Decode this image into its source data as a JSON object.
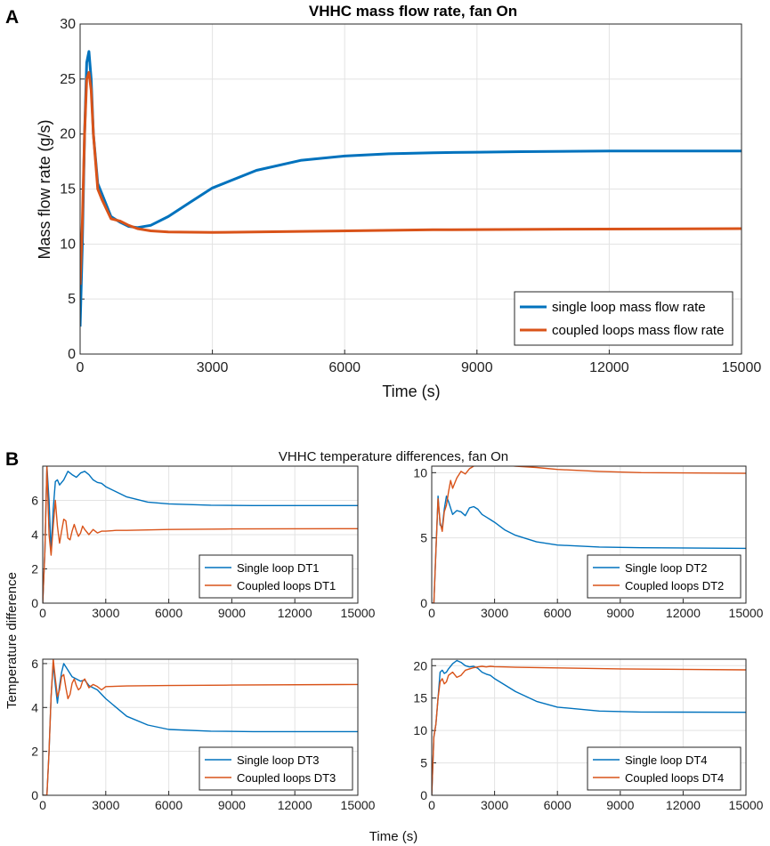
{
  "panels": {
    "a": "A",
    "b": "B"
  },
  "colors": {
    "blue": "#0072BD",
    "orange": "#D95319"
  },
  "chart_data": [
    {
      "id": "A",
      "type": "line",
      "title": "VHHC mass flow rate, fan On",
      "xlabel": "Time (s)",
      "ylabel": "Mass flow rate (g/s)",
      "xlim": [
        0,
        15000
      ],
      "ylim": [
        0,
        30
      ],
      "xticks": [
        0,
        3000,
        6000,
        9000,
        12000,
        15000
      ],
      "yticks": [
        0,
        5,
        10,
        15,
        20,
        25,
        30
      ],
      "grid": true,
      "legend": "bottom-right",
      "series": [
        {
          "name": "single loop mass flow rate",
          "color": "#0072BD",
          "x": [
            0,
            50,
            100,
            150,
            200,
            250,
            300,
            400,
            500,
            700,
            900,
            1100,
            1300,
            1600,
            2000,
            2500,
            3000,
            4000,
            5000,
            6000,
            7000,
            8000,
            9000,
            10000,
            12000,
            15000
          ],
          "y": [
            2.5,
            10,
            20,
            26.5,
            27.5,
            25,
            20,
            15.5,
            14.5,
            12.5,
            12,
            11.6,
            11.5,
            11.7,
            12.5,
            13.8,
            15.1,
            16.7,
            17.6,
            18.0,
            18.2,
            18.3,
            18.35,
            18.4,
            18.45,
            18.45
          ]
        },
        {
          "name": "coupled loops mass flow rate",
          "color": "#D95319",
          "x": [
            0,
            50,
            100,
            150,
            200,
            250,
            300,
            400,
            500,
            700,
            900,
            1100,
            1300,
            1600,
            2000,
            3000,
            5000,
            8000,
            11000,
            15000
          ],
          "y": [
            6.3,
            12,
            20,
            25,
            25.6,
            24,
            20,
            15,
            14,
            12.3,
            12.1,
            11.7,
            11.4,
            11.2,
            11.1,
            11.05,
            11.15,
            11.3,
            11.35,
            11.4
          ]
        }
      ]
    },
    {
      "id": "B",
      "type": "line",
      "title": "VHHC temperature differences, fan On",
      "xlabel": "Time (s)",
      "ylabel": "Temperature difference",
      "subplots": [
        {
          "xlim": [
            0,
            15000
          ],
          "ylim": [
            0,
            8
          ],
          "xticks": [
            0,
            3000,
            6000,
            9000,
            12000,
            15000
          ],
          "yticks": [
            0,
            2,
            4,
            6
          ],
          "legend": "bottom-right",
          "series": [
            {
              "name": "Single loop DT1",
              "color": "#0072BD",
              "x": [
                0,
                100,
                200,
                300,
                400,
                500,
                600,
                700,
                800,
                1000,
                1200,
                1400,
                1600,
                1800,
                2000,
                2200,
                2400,
                2600,
                2800,
                3000,
                3500,
                4000,
                5000,
                6000,
                8000,
                10000,
                15000
              ],
              "y": [
                0,
                3,
                8,
                6,
                3,
                5.5,
                7.1,
                7.2,
                6.9,
                7.2,
                7.7,
                7.5,
                7.35,
                7.6,
                7.7,
                7.5,
                7.2,
                7.05,
                7.0,
                6.8,
                6.5,
                6.2,
                5.9,
                5.8,
                5.72,
                5.7,
                5.7
              ]
            },
            {
              "name": "Coupled loops DT1",
              "color": "#D95319",
              "x": [
                0,
                100,
                200,
                300,
                400,
                500,
                600,
                700,
                800,
                900,
                1000,
                1100,
                1200,
                1300,
                1400,
                1500,
                1600,
                1700,
                1800,
                1900,
                2000,
                2200,
                2400,
                2600,
                2800,
                3000,
                3500,
                4000,
                6000,
                9000,
                15000
              ],
              "y": [
                0,
                3,
                8,
                4,
                2.8,
                4.5,
                6.0,
                4.5,
                3.5,
                4.2,
                4.9,
                4.8,
                3.8,
                3.7,
                4.2,
                4.6,
                4.2,
                3.9,
                4.1,
                4.5,
                4.3,
                4.0,
                4.3,
                4.1,
                4.2,
                4.2,
                4.25,
                4.25,
                4.3,
                4.33,
                4.35
              ]
            }
          ]
        },
        {
          "xlim": [
            0,
            15000
          ],
          "ylim": [
            0,
            10.5
          ],
          "xticks": [
            0,
            3000,
            6000,
            9000,
            12000,
            15000
          ],
          "yticks": [
            0,
            5,
            10
          ],
          "legend": "bottom-right",
          "series": [
            {
              "name": "Single loop DT2",
              "color": "#0072BD",
              "x": [
                0,
                100,
                200,
                300,
                400,
                500,
                600,
                700,
                800,
                1000,
                1200,
                1400,
                1600,
                1800,
                2000,
                2200,
                2400,
                2600,
                2800,
                3000,
                3500,
                4000,
                5000,
                6000,
                8000,
                10000,
                15000
              ],
              "y": [
                0,
                0,
                4,
                8.2,
                6,
                5.8,
                7.2,
                8.2,
                7.8,
                6.8,
                7.1,
                7.0,
                6.7,
                7.3,
                7.4,
                7.2,
                6.8,
                6.6,
                6.4,
                6.2,
                5.6,
                5.2,
                4.7,
                4.45,
                4.3,
                4.25,
                4.2
              ]
            },
            {
              "name": "Coupled loops DT2",
              "color": "#D95319",
              "x": [
                0,
                100,
                200,
                300,
                400,
                500,
                600,
                700,
                800,
                900,
                1000,
                1200,
                1400,
                1600,
                1800,
                2000,
                2200,
                2500,
                3000,
                4000,
                5000,
                6000,
                8000,
                10000,
                15000
              ],
              "y": [
                0,
                0,
                4,
                8.0,
                6.2,
                5.5,
                7.0,
                7.5,
                8.5,
                9.4,
                8.8,
                9.6,
                10.1,
                9.9,
                10.3,
                10.5,
                10.7,
                10.6,
                10.65,
                10.5,
                10.4,
                10.25,
                10.1,
                10.0,
                9.95
              ]
            }
          ]
        },
        {
          "xlim": [
            0,
            15000
          ],
          "ylim": [
            0,
            6.2
          ],
          "xticks": [
            0,
            3000,
            6000,
            9000,
            12000,
            15000
          ],
          "yticks": [
            0,
            2,
            4,
            6
          ],
          "legend": "bottom-right",
          "series": [
            {
              "name": "Single loop DT3",
              "color": "#0072BD",
              "x": [
                0,
                200,
                300,
                400,
                500,
                600,
                700,
                800,
                900,
                1000,
                1200,
                1400,
                1600,
                1800,
                2000,
                2200,
                2400,
                2600,
                2800,
                3000,
                3500,
                4000,
                5000,
                6000,
                8000,
                10000,
                15000
              ],
              "y": [
                0,
                0,
                2,
                4.5,
                6.0,
                5.0,
                4.2,
                5.0,
                5.6,
                6.0,
                5.7,
                5.4,
                5.3,
                5.2,
                5.25,
                5.0,
                4.9,
                4.8,
                4.6,
                4.4,
                4.0,
                3.6,
                3.2,
                3.0,
                2.92,
                2.9,
                2.9
              ]
            },
            {
              "name": "Coupled loops DT3",
              "color": "#D95319",
              "x": [
                0,
                200,
                300,
                400,
                500,
                600,
                700,
                800,
                900,
                1000,
                1100,
                1200,
                1300,
                1400,
                1500,
                1600,
                1700,
                1800,
                1900,
                2000,
                2200,
                2400,
                2600,
                2800,
                3000,
                4000,
                6000,
                9000,
                15000
              ],
              "y": [
                0,
                0,
                2,
                4.5,
                6.2,
                5.3,
                4.5,
                4.8,
                5.4,
                5.5,
                4.9,
                4.4,
                4.6,
                5.1,
                5.3,
                5.0,
                4.8,
                4.9,
                5.2,
                5.3,
                4.9,
                5.05,
                4.95,
                4.8,
                4.95,
                4.98,
                5.0,
                5.02,
                5.05
              ]
            }
          ]
        },
        {
          "xlim": [
            0,
            15000
          ],
          "ylim": [
            0,
            21
          ],
          "xticks": [
            0,
            3000,
            6000,
            9000,
            12000,
            15000
          ],
          "yticks": [
            0,
            5,
            10,
            15,
            20
          ],
          "legend": "bottom-right",
          "series": [
            {
              "name": "Single loop DT4",
              "color": "#0072BD",
              "x": [
                0,
                100,
                200,
                300,
                400,
                500,
                600,
                700,
                800,
                1000,
                1200,
                1400,
                1600,
                1800,
                2000,
                2200,
                2400,
                2600,
                2800,
                3000,
                3500,
                4000,
                5000,
                6000,
                8000,
                10000,
                15000
              ],
              "y": [
                0,
                9,
                11,
                15,
                19,
                19.3,
                18.8,
                19.0,
                19.5,
                20.3,
                20.8,
                20.5,
                20.0,
                19.8,
                19.9,
                19.6,
                19.0,
                18.7,
                18.5,
                18.0,
                17.0,
                16.0,
                14.5,
                13.6,
                13.0,
                12.85,
                12.8
              ]
            },
            {
              "name": "Coupled loops DT4",
              "color": "#D95319",
              "x": [
                0,
                100,
                200,
                300,
                400,
                500,
                600,
                700,
                800,
                1000,
                1200,
                1400,
                1600,
                1800,
                2000,
                2200,
                2400,
                2600,
                2800,
                3000,
                3500,
                4000,
                6000,
                9000,
                15000
              ],
              "y": [
                0,
                9,
                11,
                15,
                17.5,
                18.0,
                17.2,
                17.5,
                18.5,
                19.0,
                18.2,
                18.5,
                19.3,
                19.5,
                19.7,
                19.8,
                19.9,
                19.8,
                19.9,
                19.85,
                19.8,
                19.75,
                19.65,
                19.5,
                19.35
              ]
            }
          ]
        }
      ]
    }
  ]
}
